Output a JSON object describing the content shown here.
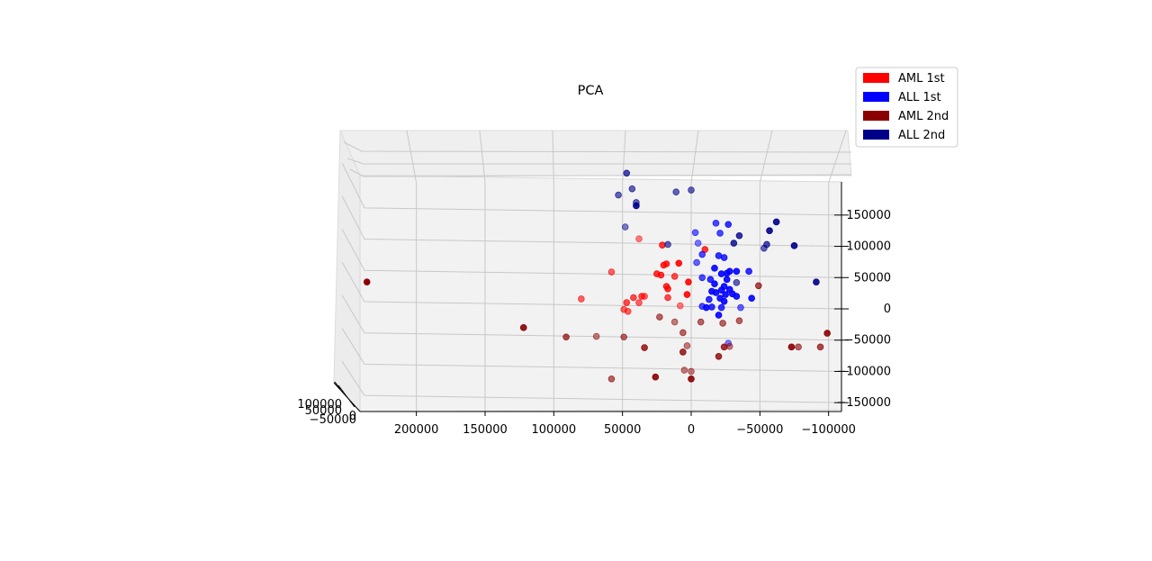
{
  "chart_data": {
    "type": "scatter",
    "projection": "3d",
    "title": "PCA",
    "legend_placement": "top-right",
    "grid": true,
    "x_ticks": [
      "200000",
      "150000",
      "100000",
      "50000",
      "0",
      "−50000",
      "−100000"
    ],
    "y_ticks": [
      "100000",
      "50000",
      "0",
      "−50000"
    ],
    "z_ticks": [
      "150000",
      "100000",
      "50000",
      "0",
      "−50000",
      "−100000",
      "−150000"
    ],
    "xlim": [
      240000,
      -100000
    ],
    "zlim": [
      -165000,
      180000
    ],
    "series": [
      {
        "name": "AML 1st",
        "color": "#ff0000",
        "points": [
          {
            "x": 38000,
            "z": 112000,
            "shade": 0.5
          },
          {
            "x": 21000,
            "z": 102000,
            "shade": 0.8
          },
          {
            "x": -10000,
            "z": 95000,
            "shade": 0.8
          },
          {
            "x": 18000,
            "z": 72000,
            "shade": 0.8
          },
          {
            "x": 20000,
            "z": 70000,
            "shade": 0.8
          },
          {
            "x": 9000,
            "z": 73000,
            "shade": 0.9
          },
          {
            "x": 58000,
            "z": 59000,
            "shade": 0.6
          },
          {
            "x": 25000,
            "z": 56000,
            "shade": 0.8
          },
          {
            "x": 22000,
            "z": 54000,
            "shade": 0.8
          },
          {
            "x": 12000,
            "z": 52000,
            "shade": 0.7
          },
          {
            "x": 2000,
            "z": 43000,
            "shade": 0.9
          },
          {
            "x": 18000,
            "z": 36000,
            "shade": 0.8
          },
          {
            "x": 17000,
            "z": 32000,
            "shade": 0.8
          },
          {
            "x": 3000,
            "z": 23000,
            "shade": 0.9
          },
          {
            "x": 17000,
            "z": 18000,
            "shade": 0.7
          },
          {
            "x": 34000,
            "z": 20000,
            "shade": 0.6
          },
          {
            "x": 36000,
            "z": 20000,
            "shade": 0.7
          },
          {
            "x": 42000,
            "z": 18000,
            "shade": 0.7
          },
          {
            "x": 38000,
            "z": 10000,
            "shade": 0.6
          },
          {
            "x": 80000,
            "z": 16000,
            "shade": 0.6
          },
          {
            "x": 47000,
            "z": 10000,
            "shade": 0.7
          },
          {
            "x": 49000,
            "z": -1000,
            "shade": 0.6
          },
          {
            "x": 46000,
            "z": -4000,
            "shade": 0.6
          },
          {
            "x": 8000,
            "z": 5000,
            "shade": 0.5
          }
        ]
      },
      {
        "name": "ALL 1st",
        "color": "#0000ff",
        "points": [
          {
            "x": -18000,
            "z": 137000,
            "shade": 0.7
          },
          {
            "x": -27000,
            "z": 135000,
            "shade": 0.8
          },
          {
            "x": -21000,
            "z": 121000,
            "shade": 0.7
          },
          {
            "x": -3000,
            "z": 122000,
            "shade": 0.6
          },
          {
            "x": -5000,
            "z": 105000,
            "shade": 0.5
          },
          {
            "x": -8000,
            "z": 87000,
            "shade": 0.7
          },
          {
            "x": -20000,
            "z": 85000,
            "shade": 0.8
          },
          {
            "x": -24000,
            "z": 82000,
            "shade": 0.8
          },
          {
            "x": -4000,
            "z": 74000,
            "shade": 0.6
          },
          {
            "x": -17000,
            "z": 65000,
            "shade": 0.9
          },
          {
            "x": -28000,
            "z": 60000,
            "shade": 0.9
          },
          {
            "x": -26000,
            "z": 57000,
            "shade": 0.9
          },
          {
            "x": -22000,
            "z": 56000,
            "shade": 0.9
          },
          {
            "x": -33000,
            "z": 60000,
            "shade": 0.9
          },
          {
            "x": -42000,
            "z": 60000,
            "shade": 0.8
          },
          {
            "x": -8000,
            "z": 50000,
            "shade": 0.7
          },
          {
            "x": -14000,
            "z": 47000,
            "shade": 0.8
          },
          {
            "x": -26000,
            "z": 47000,
            "shade": 0.9
          },
          {
            "x": -17000,
            "z": 40000,
            "shade": 0.9
          },
          {
            "x": -24000,
            "z": 36000,
            "shade": 0.9
          },
          {
            "x": -28000,
            "z": 31000,
            "shade": 0.9
          },
          {
            "x": -22000,
            "z": 30000,
            "shade": 0.9
          },
          {
            "x": -15000,
            "z": 28000,
            "shade": 0.9
          },
          {
            "x": -18000,
            "z": 26000,
            "shade": 0.9
          },
          {
            "x": -25000,
            "z": 23000,
            "shade": 0.9
          },
          {
            "x": -30000,
            "z": 24000,
            "shade": 0.9
          },
          {
            "x": -21000,
            "z": 17000,
            "shade": 0.9
          },
          {
            "x": -13000,
            "z": 15000,
            "shade": 0.8
          },
          {
            "x": -33000,
            "z": 20000,
            "shade": 0.9
          },
          {
            "x": -8000,
            "z": 4000,
            "shade": 0.7
          },
          {
            "x": -15000,
            "z": 3000,
            "shade": 0.8
          },
          {
            "x": -22000,
            "z": 2000,
            "shade": 0.8
          },
          {
            "x": -20000,
            "z": -10000,
            "shade": 0.9
          },
          {
            "x": -11000,
            "z": 2000,
            "shade": 0.9
          },
          {
            "x": -44000,
            "z": 17000,
            "shade": 0.9
          },
          {
            "x": -27000,
            "z": -55000,
            "shade": 0.5
          },
          {
            "x": -36000,
            "z": 2000,
            "shade": 0.6
          },
          {
            "x": -24000,
            "z": 12000,
            "shade": 0.9
          }
        ]
      },
      {
        "name": "AML 2nd",
        "color": "#8b0000",
        "points": [
          {
            "x": 236000,
            "z": 43000,
            "shade": 1.0
          },
          {
            "x": 122000,
            "z": -30000,
            "shade": 0.9
          },
          {
            "x": 91000,
            "z": -45000,
            "shade": 0.7
          },
          {
            "x": 69000,
            "z": -44000,
            "shade": 0.5
          },
          {
            "x": 49000,
            "z": -45000,
            "shade": 0.6
          },
          {
            "x": 34000,
            "z": -62000,
            "shade": 0.8
          },
          {
            "x": 23000,
            "z": -13000,
            "shade": 0.6
          },
          {
            "x": 12000,
            "z": -21000,
            "shade": 0.5
          },
          {
            "x": 6000,
            "z": -38000,
            "shade": 0.6
          },
          {
            "x": 3000,
            "z": -59000,
            "shade": 0.5
          },
          {
            "x": 6000,
            "z": -69000,
            "shade": 0.8
          },
          {
            "x": -7000,
            "z": -21000,
            "shade": 0.6
          },
          {
            "x": -23000,
            "z": -23000,
            "shade": 0.6
          },
          {
            "x": -35000,
            "z": -19000,
            "shade": 0.6
          },
          {
            "x": -24000,
            "z": -61000,
            "shade": 0.8
          },
          {
            "x": -28000,
            "z": -60000,
            "shade": 0.5
          },
          {
            "x": -20000,
            "z": -76000,
            "shade": 0.8
          },
          {
            "x": 5000,
            "z": -98000,
            "shade": 0.5
          },
          {
            "x": 0,
            "z": -100000,
            "shade": 0.5
          },
          {
            "x": 58000,
            "z": -112000,
            "shade": 0.6
          },
          {
            "x": 26000,
            "z": -109000,
            "shade": 0.9
          },
          {
            "x": 0,
            "z": -112000,
            "shade": 0.9
          },
          {
            "x": -49000,
            "z": 37000,
            "shade": 0.7
          },
          {
            "x": -73000,
            "z": -61000,
            "shade": 0.9
          },
          {
            "x": -78000,
            "z": -61000,
            "shade": 0.6
          },
          {
            "x": -94000,
            "z": -61000,
            "shade": 0.7
          },
          {
            "x": -99000,
            "z": -39000,
            "shade": 0.9
          }
        ]
      },
      {
        "name": "ALL 2nd",
        "color": "#00008b",
        "points": [
          {
            "x": 47000,
            "z": 217000,
            "shade": 0.7
          },
          {
            "x": 43000,
            "z": 192000,
            "shade": 0.6
          },
          {
            "x": 53000,
            "z": 182000,
            "shade": 0.6
          },
          {
            "x": 11000,
            "z": 187000,
            "shade": 0.6
          },
          {
            "x": 0,
            "z": 190000,
            "shade": 0.6
          },
          {
            "x": 40000,
            "z": 170000,
            "shade": 0.6
          },
          {
            "x": 40000,
            "z": 165000,
            "shade": 0.9
          },
          {
            "x": 48000,
            "z": 131000,
            "shade": 0.5
          },
          {
            "x": -62000,
            "z": 139000,
            "shade": 0.9
          },
          {
            "x": -57000,
            "z": 125000,
            "shade": 0.9
          },
          {
            "x": -35000,
            "z": 117000,
            "shade": 0.8
          },
          {
            "x": -31000,
            "z": 105000,
            "shade": 0.8
          },
          {
            "x": -55000,
            "z": 103000,
            "shade": 0.7
          },
          {
            "x": -53000,
            "z": 97000,
            "shade": 0.6
          },
          {
            "x": -75000,
            "z": 101000,
            "shade": 0.9
          },
          {
            "x": 17000,
            "z": 103000,
            "shade": 0.6
          },
          {
            "x": -91000,
            "z": 43000,
            "shade": 0.9
          },
          {
            "x": -33000,
            "z": 42000,
            "shade": 0.6
          }
        ]
      }
    ]
  }
}
